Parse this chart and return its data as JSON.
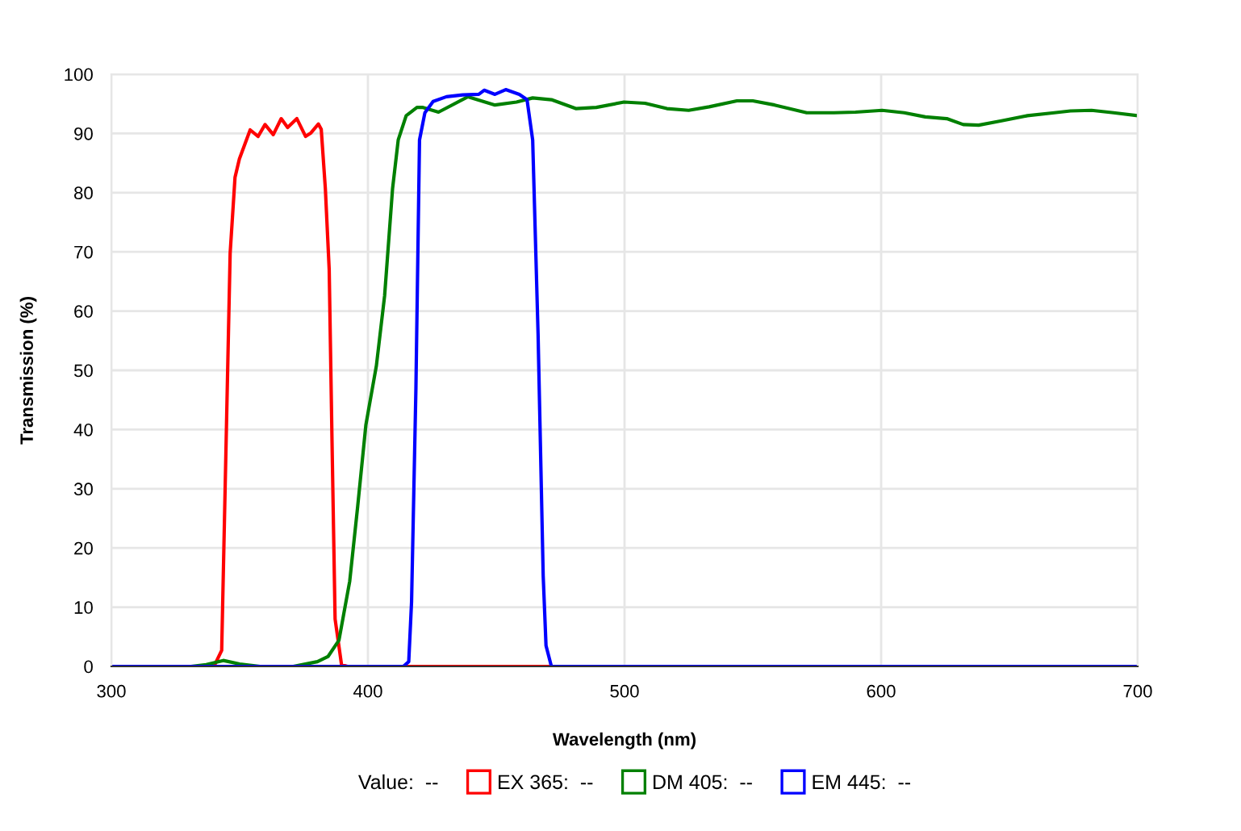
{
  "chart_data": {
    "type": "line",
    "xlabel": "Wavelength (nm)",
    "ylabel": "Transmission (%)",
    "xlim": [
      300,
      700
    ],
    "xticks": [
      300,
      400,
      500,
      600,
      700
    ],
    "ylim": [
      0,
      100
    ],
    "yticks": [
      0,
      10,
      20,
      30,
      40,
      50,
      60,
      70,
      80,
      90,
      100
    ],
    "grid": true,
    "legend": "bottom",
    "marker": "none",
    "line_style": "solid",
    "annotations": [
      "Value:  --"
    ],
    "series": [
      {
        "name": "EX 365:  --",
        "color": "#ff0000",
        "x": [
          300,
          340,
          343,
          346.3,
          348.2,
          349.9,
          354.1,
          357.2,
          359.9,
          363.1,
          366.2,
          368.7,
          372.3,
          375.7,
          377.8,
          380.7,
          381.8,
          383.4,
          384.9,
          386,
          387.2,
          389.7,
          392,
          700
        ],
        "values": [
          0,
          0,
          2.7,
          69.8,
          82.6,
          85.7,
          90.6,
          89.5,
          91.5,
          89.8,
          92.5,
          91,
          92.5,
          89.5,
          90.1,
          91.6,
          90.7,
          80.7,
          67,
          38,
          8,
          0.3,
          0,
          0
        ]
      },
      {
        "name": "DM 405:  --",
        "color": "#008000",
        "x": [
          331,
          337,
          343.6,
          350,
          358,
          370.9,
          380.3,
          384.5,
          388.7,
          392.9,
          396,
          399.2,
          403.3,
          406.5,
          409.6,
          411.8,
          414.9,
          419.1,
          421.2,
          427.5,
          439,
          449.5,
          457.9,
          464.2,
          471.5,
          481,
          489,
          499.8,
          508,
          516.5,
          525,
          533,
          543.8,
          550,
          558.5,
          571,
          581.6,
          590,
          600.4,
          609,
          617.2,
          625.6,
          632,
          638,
          646.5,
          657,
          667.5,
          673.8,
          682,
          690.6,
          700
        ],
        "values": [
          0,
          0.3,
          1,
          0.4,
          0,
          0,
          0.8,
          1.7,
          4.4,
          14.4,
          27,
          40.8,
          50.8,
          62.6,
          80.7,
          88.9,
          93,
          94.4,
          94.4,
          93.6,
          96.2,
          94.8,
          95.3,
          96,
          95.7,
          94.2,
          94.4,
          95.3,
          95.1,
          94.2,
          93.9,
          94.5,
          95.5,
          95.5,
          94.8,
          93.5,
          93.5,
          93.6,
          93.9,
          93.5,
          92.8,
          92.5,
          91.5,
          91.4,
          92.1,
          93,
          93.5,
          93.8,
          93.9,
          93.5,
          93
        ]
      },
      {
        "name": "EM 445:  --",
        "color": "#0000ff",
        "x": [
          300,
          413.8,
          415.9,
          417,
          418.7,
          420.1,
          422.2,
          425.4,
          430.6,
          436.9,
          443.2,
          445.3,
          449.5,
          453.7,
          459,
          462,
          464.2,
          466.3,
          468.3,
          469.4,
          471.5,
          700
        ],
        "values": [
          0,
          0,
          0.8,
          10.9,
          47,
          88.9,
          93.5,
          95.4,
          96.2,
          96.5,
          96.6,
          97.3,
          96.6,
          97.4,
          96.6,
          95.7,
          88.9,
          56.2,
          15.3,
          3.5,
          0,
          0
        ]
      }
    ]
  }
}
